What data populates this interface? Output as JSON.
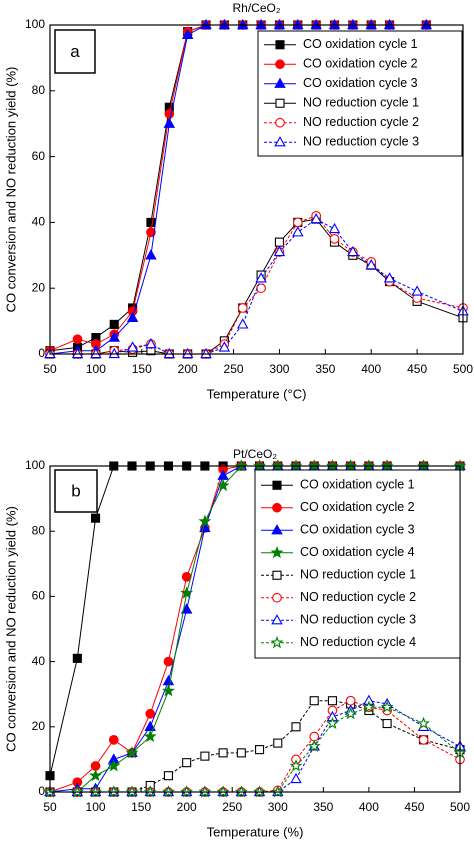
{
  "chart_data": [
    {
      "type": "line",
      "title": "Rh/CeO₂",
      "panel_label": "a",
      "x_label": "Temperature (°C)",
      "y_label": "CO conversion and NO reduction yield (%)",
      "xlim": [
        50,
        500
      ],
      "xticks": [
        50,
        100,
        150,
        200,
        250,
        300,
        350,
        400,
        450,
        500
      ],
      "ylim": [
        0,
        100
      ],
      "yticks": [
        0,
        20,
        40,
        60,
        80,
        100
      ],
      "legend": "upper right",
      "series": [
        {
          "name": "CO oxidation cycle 1",
          "color": "#000000",
          "marker": "square",
          "filled": true,
          "dashed": false,
          "x": [
            50,
            80,
            100,
            120,
            140,
            160,
            180,
            200,
            220,
            240,
            260,
            280,
            300,
            320,
            340,
            360,
            380,
            400,
            420,
            460
          ],
          "values": [
            1,
            2,
            5,
            9,
            14,
            40,
            75,
            98,
            100,
            100,
            100,
            100,
            100,
            100,
            100,
            100,
            100,
            100,
            100,
            100
          ]
        },
        {
          "name": "CO oxidation cycle 2",
          "color": "#ff0000",
          "marker": "circle",
          "filled": true,
          "dashed": false,
          "x": [
            50,
            80,
            100,
            120,
            140,
            160,
            180,
            200,
            220,
            240,
            260,
            280,
            300,
            320,
            340,
            360,
            380,
            400,
            420,
            460
          ],
          "values": [
            1,
            4.5,
            3,
            6,
            13,
            37,
            73,
            98,
            100,
            100,
            100,
            100,
            100,
            100,
            100,
            100,
            100,
            100,
            100,
            100
          ]
        },
        {
          "name": "CO oxidation cycle 3",
          "color": "#0000ff",
          "marker": "triangle",
          "filled": true,
          "dashed": false,
          "x": [
            50,
            80,
            100,
            120,
            140,
            160,
            180,
            200,
            220,
            240,
            260,
            280,
            300,
            320,
            340,
            360,
            380,
            400,
            420,
            460
          ],
          "values": [
            0,
            1,
            1,
            5,
            11,
            30,
            70,
            97,
            100,
            100,
            100,
            100,
            100,
            100,
            100,
            100,
            100,
            100,
            100,
            100
          ]
        },
        {
          "name": "NO reduction cycle 1",
          "color": "#000000",
          "marker": "square",
          "filled": false,
          "dashed": false,
          "x": [
            50,
            80,
            100,
            120,
            140,
            160,
            180,
            200,
            220,
            240,
            260,
            280,
            300,
            320,
            340,
            360,
            380,
            400,
            420,
            450,
            500
          ],
          "values": [
            0,
            0,
            0,
            1,
            0.5,
            1,
            0,
            0,
            0,
            4,
            14,
            24,
            34,
            40,
            41,
            34,
            30,
            27,
            22,
            16,
            11
          ]
        },
        {
          "name": "NO reduction cycle 2",
          "color": "#ff0000",
          "marker": "circle",
          "filled": false,
          "dashed": true,
          "x": [
            50,
            80,
            100,
            120,
            140,
            160,
            180,
            200,
            220,
            240,
            260,
            280,
            300,
            320,
            340,
            360,
            380,
            400,
            420,
            450,
            500
          ],
          "values": [
            0,
            0,
            0,
            1,
            1.5,
            3,
            0,
            0,
            0,
            3,
            14,
            20,
            31,
            40,
            42,
            35,
            31,
            28,
            22,
            17,
            14
          ]
        },
        {
          "name": "NO reduction cycle 3",
          "color": "#0000ff",
          "marker": "triangle",
          "filled": false,
          "dashed": true,
          "x": [
            50,
            80,
            100,
            120,
            140,
            160,
            180,
            200,
            220,
            240,
            260,
            280,
            300,
            320,
            340,
            360,
            380,
            400,
            420,
            450,
            500
          ],
          "values": [
            0,
            0,
            0,
            0,
            2,
            3,
            0,
            0,
            0,
            2,
            9,
            23,
            31,
            37,
            41,
            38,
            31,
            27,
            23,
            19,
            13
          ]
        }
      ]
    },
    {
      "type": "line",
      "title": "Pt/CeO₂",
      "panel_label": "b",
      "x_label": "Temperature (%)",
      "y_label": "CO conversion and NO reduction yield (%)",
      "xlim": [
        50,
        500
      ],
      "xticks": [
        50,
        100,
        150,
        200,
        250,
        300,
        350,
        400,
        450,
        500
      ],
      "ylim": [
        0,
        100
      ],
      "yticks": [
        0,
        20,
        40,
        60,
        80,
        100
      ],
      "legend": "upper right",
      "series": [
        {
          "name": "CO oxidation cycle 1",
          "color": "#000000",
          "marker": "square",
          "filled": true,
          "dashed": false,
          "x": [
            50,
            80,
            100,
            120,
            140,
            160,
            180,
            200,
            220,
            240,
            260,
            280,
            300,
            320,
            340,
            360,
            380,
            400,
            420,
            460,
            500
          ],
          "values": [
            5,
            41,
            84,
            100,
            100,
            100,
            100,
            100,
            100,
            100,
            100,
            100,
            100,
            100,
            100,
            100,
            100,
            100,
            100,
            100,
            100
          ]
        },
        {
          "name": "CO oxidation cycle 2",
          "color": "#ff0000",
          "marker": "circle",
          "filled": true,
          "dashed": false,
          "x": [
            50,
            80,
            100,
            120,
            140,
            160,
            180,
            200,
            220,
            240,
            260,
            280,
            300,
            320,
            340,
            360,
            380,
            400,
            420,
            460,
            500
          ],
          "values": [
            0,
            3,
            8,
            16,
            12,
            24,
            40,
            66,
            81,
            99,
            100,
            100,
            100,
            100,
            100,
            100,
            100,
            100,
            100,
            100,
            100
          ]
        },
        {
          "name": "CO oxidation cycle 3",
          "color": "#0000ff",
          "marker": "triangle",
          "filled": true,
          "dashed": false,
          "x": [
            50,
            80,
            100,
            120,
            140,
            160,
            180,
            200,
            220,
            240,
            260,
            280,
            300,
            320,
            340,
            360,
            380,
            400,
            420,
            460,
            500
          ],
          "values": [
            0,
            1,
            1,
            10,
            12,
            20,
            34,
            56,
            81,
            97,
            100,
            100,
            100,
            100,
            100,
            100,
            100,
            100,
            100,
            100,
            100
          ]
        },
        {
          "name": "CO oxidation cycle 4",
          "color": "#008000",
          "marker": "star",
          "filled": true,
          "dashed": false,
          "x": [
            50,
            80,
            100,
            120,
            140,
            160,
            180,
            200,
            220,
            240,
            260,
            280,
            300,
            320,
            340,
            360,
            380,
            400,
            420,
            460,
            500
          ],
          "values": [
            0,
            0,
            5,
            8,
            12,
            17,
            31,
            61,
            83,
            94,
            100,
            100,
            100,
            100,
            100,
            100,
            100,
            100,
            100,
            100,
            100
          ]
        },
        {
          "name": "NO reduction cycle 1",
          "color": "#000000",
          "marker": "square",
          "filled": false,
          "dashed": true,
          "x": [
            50,
            80,
            100,
            120,
            140,
            160,
            180,
            200,
            220,
            240,
            260,
            280,
            300,
            320,
            340,
            360,
            380,
            400,
            420,
            460,
            500
          ],
          "values": [
            0,
            0,
            0,
            0,
            0,
            2,
            5,
            9,
            11,
            12,
            12,
            13,
            15,
            20,
            28,
            28,
            27,
            25,
            21,
            16,
            13
          ]
        },
        {
          "name": "NO reduction cycle 2",
          "color": "#ff0000",
          "marker": "circle",
          "filled": false,
          "dashed": true,
          "x": [
            50,
            80,
            100,
            120,
            140,
            160,
            180,
            200,
            220,
            240,
            260,
            280,
            300,
            320,
            340,
            360,
            380,
            400,
            420,
            460,
            500
          ],
          "values": [
            0,
            0,
            0,
            0,
            0,
            0,
            0,
            0,
            0,
            0,
            0,
            0,
            0.5,
            10,
            17,
            25,
            28,
            26,
            25,
            16,
            10
          ]
        },
        {
          "name": "NO reduction cycle 3",
          "color": "#0000ff",
          "marker": "triangle",
          "filled": false,
          "dashed": true,
          "x": [
            50,
            80,
            100,
            120,
            140,
            160,
            180,
            200,
            220,
            240,
            260,
            280,
            300,
            320,
            340,
            360,
            380,
            400,
            420,
            460,
            500
          ],
          "values": [
            0,
            0,
            0,
            0,
            0,
            0,
            0,
            0,
            0,
            0,
            0,
            0,
            0,
            4,
            14,
            23,
            25,
            28,
            27,
            20,
            14
          ]
        },
        {
          "name": "NO reduction cycle 4",
          "color": "#008000",
          "marker": "star",
          "filled": false,
          "dashed": true,
          "x": [
            50,
            80,
            100,
            120,
            140,
            160,
            180,
            200,
            220,
            240,
            260,
            280,
            300,
            320,
            340,
            360,
            380,
            400,
            420,
            460,
            500
          ],
          "values": [
            0,
            0,
            0,
            0,
            0,
            0,
            0,
            0,
            0,
            0,
            0,
            0,
            0,
            8,
            14,
            21,
            24,
            26,
            26,
            21,
            12
          ]
        }
      ]
    }
  ]
}
